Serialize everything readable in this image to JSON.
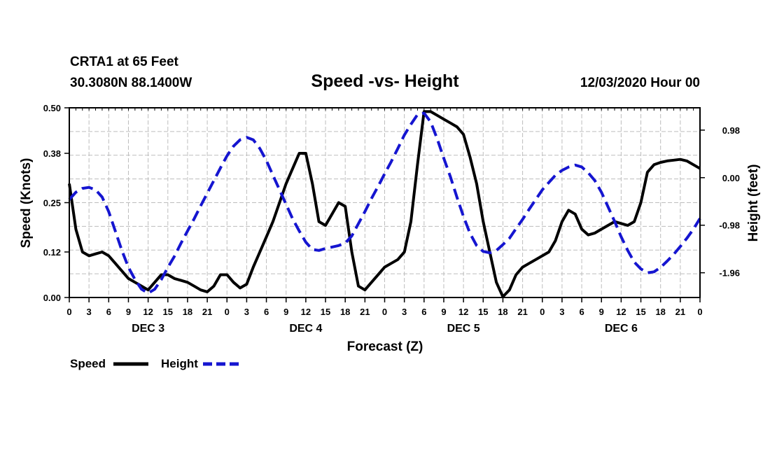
{
  "header": {
    "station": "CRTA1 at 65 Feet",
    "location": "30.3080N 88.1400W",
    "title": "Speed -vs- Height",
    "datetime": "12/03/2020 Hour 00"
  },
  "colors": {
    "speed": "#000000",
    "height": "#1515d0",
    "grid": "#bdbdbd"
  },
  "chart_data": {
    "type": "line",
    "title": "Speed -vs- Height",
    "xlabel": "Forecast (Z)",
    "ylabel": "Speed (Knots)",
    "y2label": "Height (feet)",
    "xlim": [
      0,
      96
    ],
    "ylim": [
      0,
      0.5
    ],
    "y2lim": [
      -2.47,
      1.44
    ],
    "x_ticks": [
      0,
      3,
      6,
      9,
      12,
      15,
      18,
      21,
      24,
      27,
      30,
      33,
      36,
      39,
      42,
      45,
      48,
      51,
      54,
      57,
      60,
      63,
      66,
      69,
      72,
      75,
      78,
      81,
      84,
      87,
      90,
      93,
      96
    ],
    "x_tick_labels": [
      "0",
      "3",
      "6",
      "9",
      "12",
      "15",
      "18",
      "21",
      "0",
      "3",
      "6",
      "9",
      "12",
      "15",
      "18",
      "21",
      "0",
      "3",
      "6",
      "9",
      "12",
      "15",
      "18",
      "21",
      "0",
      "3",
      "6",
      "9",
      "12",
      "15",
      "18",
      "21",
      "0"
    ],
    "day_labels": [
      {
        "x": 12,
        "label": "DEC 3"
      },
      {
        "x": 36,
        "label": "DEC 4"
      },
      {
        "x": 60,
        "label": "DEC 5"
      },
      {
        "x": 84,
        "label": "DEC 6"
      }
    ],
    "y_ticks": [
      0.0,
      0.12,
      0.25,
      0.38,
      0.5
    ],
    "y_tick_labels": [
      "0.00",
      "0.12",
      "0.25",
      "0.38",
      "0.50"
    ],
    "y2_ticks": [
      0.98,
      0.0,
      -0.98,
      -1.96
    ],
    "y2_tick_labels": [
      "0.98",
      "0.00",
      "-0.98",
      "-1.96"
    ],
    "series": [
      {
        "name": "Speed",
        "axis": "left",
        "style": "solid",
        "x": [
          0,
          1,
          2,
          3,
          4,
          5,
          6,
          7,
          8,
          9,
          10,
          11,
          12,
          13,
          14,
          15,
          16,
          17,
          18,
          19,
          20,
          21,
          22,
          23,
          24,
          25,
          26,
          27,
          28,
          29,
          30,
          31,
          32,
          33,
          34,
          35,
          36,
          37,
          38,
          39,
          40,
          41,
          42,
          43,
          44,
          45,
          46,
          47,
          48,
          49,
          50,
          51,
          52,
          53,
          54,
          55,
          56,
          57,
          58,
          59,
          60,
          61,
          62,
          63,
          64,
          65,
          66,
          67,
          68,
          69,
          70,
          71,
          72,
          73,
          74,
          75,
          76,
          77,
          78,
          79,
          80,
          81,
          82,
          83,
          84,
          85,
          86,
          87,
          88,
          89,
          90,
          91,
          92,
          93,
          94,
          95,
          96
        ],
        "values": [
          0.3,
          0.18,
          0.12,
          0.11,
          0.115,
          0.12,
          0.11,
          0.09,
          0.07,
          0.05,
          0.04,
          0.03,
          0.02,
          0.04,
          0.06,
          0.06,
          0.05,
          0.045,
          0.04,
          0.03,
          0.02,
          0.015,
          0.03,
          0.06,
          0.06,
          0.04,
          0.025,
          0.035,
          0.08,
          0.12,
          0.16,
          0.2,
          0.25,
          0.3,
          0.34,
          0.38,
          0.38,
          0.3,
          0.2,
          0.19,
          0.22,
          0.25,
          0.24,
          0.12,
          0.03,
          0.02,
          0.04,
          0.06,
          0.08,
          0.09,
          0.1,
          0.12,
          0.2,
          0.35,
          0.49,
          0.49,
          0.48,
          0.47,
          0.46,
          0.45,
          0.43,
          0.37,
          0.3,
          0.2,
          0.12,
          0.04,
          0.002,
          0.02,
          0.06,
          0.08,
          0.09,
          0.1,
          0.11,
          0.12,
          0.15,
          0.2,
          0.23,
          0.22,
          0.18,
          0.165,
          0.17,
          0.18,
          0.19,
          0.2,
          0.195,
          0.19,
          0.2,
          0.25,
          0.33,
          0.35,
          0.356,
          0.36,
          0.362,
          0.364,
          0.36,
          0.35,
          0.34
        ]
      },
      {
        "name": "Height",
        "axis": "right",
        "style": "dashed",
        "x": [
          0,
          1,
          2,
          3,
          4,
          5,
          6,
          7,
          8,
          9,
          10,
          11,
          12,
          13,
          14,
          15,
          16,
          17,
          18,
          19,
          20,
          21,
          22,
          23,
          24,
          25,
          26,
          27,
          28,
          29,
          30,
          31,
          32,
          33,
          34,
          35,
          36,
          37,
          38,
          39,
          40,
          41,
          42,
          43,
          44,
          45,
          46,
          47,
          48,
          49,
          50,
          51,
          52,
          53,
          54,
          55,
          56,
          57,
          58,
          59,
          60,
          61,
          62,
          63,
          64,
          65,
          66,
          67,
          68,
          69,
          70,
          71,
          72,
          73,
          74,
          75,
          76,
          77,
          78,
          79,
          80,
          81,
          82,
          83,
          84,
          85,
          86,
          87,
          88,
          89,
          90,
          91,
          92,
          93,
          94,
          95,
          96
        ],
        "values": [
          -0.45,
          -0.3,
          -0.22,
          -0.2,
          -0.25,
          -0.4,
          -0.7,
          -1.1,
          -1.5,
          -1.85,
          -2.1,
          -2.3,
          -2.38,
          -2.3,
          -2.1,
          -1.85,
          -1.62,
          -1.35,
          -1.1,
          -0.85,
          -0.58,
          -0.32,
          -0.06,
          0.2,
          0.45,
          0.65,
          0.78,
          0.83,
          0.78,
          0.6,
          0.35,
          0.05,
          -0.25,
          -0.55,
          -0.85,
          -1.1,
          -1.33,
          -1.48,
          -1.5,
          -1.46,
          -1.43,
          -1.4,
          -1.35,
          -1.2,
          -0.95,
          -0.7,
          -0.43,
          -0.18,
          0.08,
          0.33,
          0.6,
          0.88,
          1.1,
          1.3,
          1.33,
          1.15,
          0.8,
          0.4,
          0.02,
          -0.4,
          -0.8,
          -1.15,
          -1.4,
          -1.52,
          -1.55,
          -1.5,
          -1.38,
          -1.25,
          -1.05,
          -0.86,
          -0.65,
          -0.45,
          -0.25,
          -0.1,
          0.05,
          0.15,
          0.22,
          0.26,
          0.22,
          0.1,
          -0.06,
          -0.3,
          -0.6,
          -0.9,
          -1.22,
          -1.5,
          -1.74,
          -1.88,
          -1.96,
          -1.94,
          -1.85,
          -1.72,
          -1.58,
          -1.42,
          -1.25,
          -1.06,
          -0.84
        ]
      }
    ],
    "legend": [
      {
        "label": "Speed",
        "series": "Speed"
      },
      {
        "label": "Height",
        "series": "Height"
      }
    ],
    "legend_position": "bottom-left",
    "grid": true
  }
}
